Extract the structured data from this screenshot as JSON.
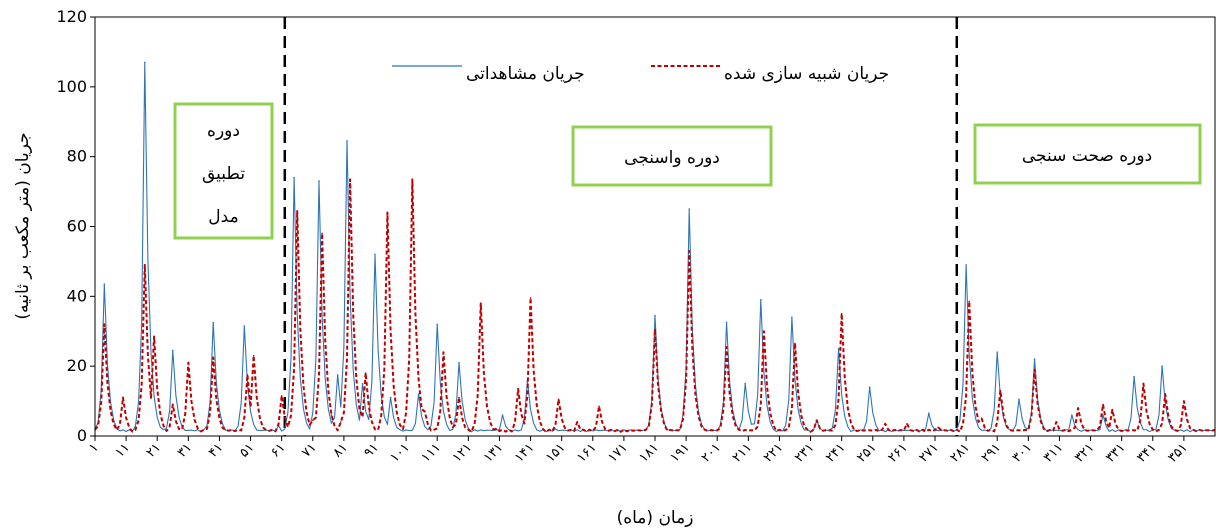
{
  "chart_data": {
    "type": "line",
    "title": "",
    "xlabel": "زمان (ماه)",
    "ylabel": "جریان (متر مکعب بر ثانیه)",
    "ylim": [
      0,
      120
    ],
    "yticks": [
      0,
      20,
      40,
      60,
      80,
      100,
      120
    ],
    "xlim": [
      1,
      361
    ],
    "xticks": [
      1,
      11,
      21,
      31,
      41,
      51,
      61,
      71,
      81,
      91,
      101,
      111,
      121,
      131,
      141,
      151,
      161,
      171,
      181,
      191,
      201,
      211,
      221,
      231,
      241,
      251,
      261,
      271,
      281,
      291,
      301,
      311,
      321,
      331,
      341,
      351
    ],
    "xtick_labels": [
      "۱",
      "۱۱",
      "۲۱",
      "۳۱",
      "۴۱",
      "۵۱",
      "۶۱",
      "۷۱",
      "۸۱",
      "۹۱",
      "۱۰۱",
      "۱۱۱",
      "۱۲۱",
      "۱۳۱",
      "۱۴۱",
      "۱۵۱",
      "۱۶۱",
      "۱۷۱",
      "۱۸۱",
      "۱۹۱",
      "۲۰۱",
      "۲۱۱",
      "۲۲۱",
      "۲۳۱",
      "۲۴۱",
      "۲۵۱",
      "۲۶۱",
      "۲۷۱",
      "۲۸۱",
      "۲۹۱",
      "۳۰۱",
      "۳۱۱",
      "۳۲۱",
      "۳۳۱",
      "۳۴۱",
      "۳۵۱"
    ],
    "legend_position": "top-center",
    "grid": false,
    "period_dividers": [
      {
        "x": 62,
        "style": "dashed",
        "color": "#000000"
      },
      {
        "x": 278,
        "style": "dashed",
        "color": "#000000"
      }
    ],
    "annotations": [
      {
        "lines": [
          "دوره",
          "تطبیق",
          "مدل"
        ],
        "border_color": "#92d050"
      },
      {
        "lines": [
          "دوره واسنجی"
        ],
        "border_color": "#92d050"
      },
      {
        "lines": [
          "دوره صحت سنجی"
        ],
        "border_color": "#92d050"
      }
    ],
    "series": [
      {
        "name": "جریان مشاهداتی",
        "color": "#2e75b6",
        "style": "solid",
        "peaks": [
          [
            4,
            43.5
          ],
          [
            17,
            107
          ],
          [
            26,
            24.5
          ],
          [
            39,
            32.5
          ],
          [
            49,
            31.5
          ],
          [
            60,
            3
          ],
          [
            65,
            74
          ],
          [
            73,
            73
          ],
          [
            79,
            17.5
          ],
          [
            82,
            84.5
          ],
          [
            87,
            15
          ],
          [
            91,
            52
          ],
          [
            96,
            11
          ],
          [
            105,
            12
          ],
          [
            111,
            32
          ],
          [
            118,
            21
          ],
          [
            132,
            6
          ],
          [
            140,
            16
          ],
          [
            149,
            2
          ],
          [
            169,
            1.5
          ],
          [
            181,
            34.5
          ],
          [
            192,
            65
          ],
          [
            204,
            32.5
          ],
          [
            210,
            15
          ],
          [
            215,
            39
          ],
          [
            225,
            34
          ],
          [
            233,
            4.5
          ],
          [
            240,
            25
          ],
          [
            250,
            14
          ],
          [
            269,
            6.5
          ],
          [
            281,
            49
          ],
          [
            291,
            24
          ],
          [
            298,
            10.5
          ],
          [
            303,
            22
          ],
          [
            315,
            6
          ],
          [
            325,
            6
          ],
          [
            335,
            17
          ],
          [
            344,
            20
          ]
        ]
      },
      {
        "name": "جریان شبیه سازی شده",
        "color": "#c00000",
        "style": "dashed",
        "peaks": [
          [
            4,
            32
          ],
          [
            10,
            11
          ],
          [
            17,
            49
          ],
          [
            20,
            28.5
          ],
          [
            26,
            9
          ],
          [
            31,
            21
          ],
          [
            39,
            22.5
          ],
          [
            50,
            17.5
          ],
          [
            52,
            23
          ],
          [
            61,
            11.5
          ],
          [
            66,
            64.5
          ],
          [
            71,
            4.5
          ],
          [
            74,
            58
          ],
          [
            77,
            6
          ],
          [
            80,
            4
          ],
          [
            83,
            73.5
          ],
          [
            88,
            18
          ],
          [
            95,
            64
          ],
          [
            103,
            73.5
          ],
          [
            107,
            7
          ],
          [
            113,
            24
          ],
          [
            118,
            11
          ],
          [
            125,
            38
          ],
          [
            130,
            2
          ],
          [
            137,
            13.5
          ],
          [
            141,
            39.5
          ],
          [
            150,
            10.5
          ],
          [
            156,
            4
          ],
          [
            163,
            8.5
          ],
          [
            181,
            30.5
          ],
          [
            192,
            53
          ],
          [
            204,
            25.5
          ],
          [
            216,
            30
          ],
          [
            226,
            26.5
          ],
          [
            233,
            4.5
          ],
          [
            241,
            35
          ],
          [
            255,
            3.5
          ],
          [
            262,
            3.5
          ],
          [
            272,
            2.5
          ],
          [
            282,
            38.5
          ],
          [
            286,
            5
          ],
          [
            292,
            13
          ],
          [
            303,
            19
          ],
          [
            310,
            4
          ],
          [
            317,
            8
          ],
          [
            325,
            9
          ],
          [
            328,
            7.5
          ],
          [
            338,
            15
          ],
          [
            345,
            12
          ],
          [
            351,
            10
          ]
        ]
      }
    ]
  }
}
